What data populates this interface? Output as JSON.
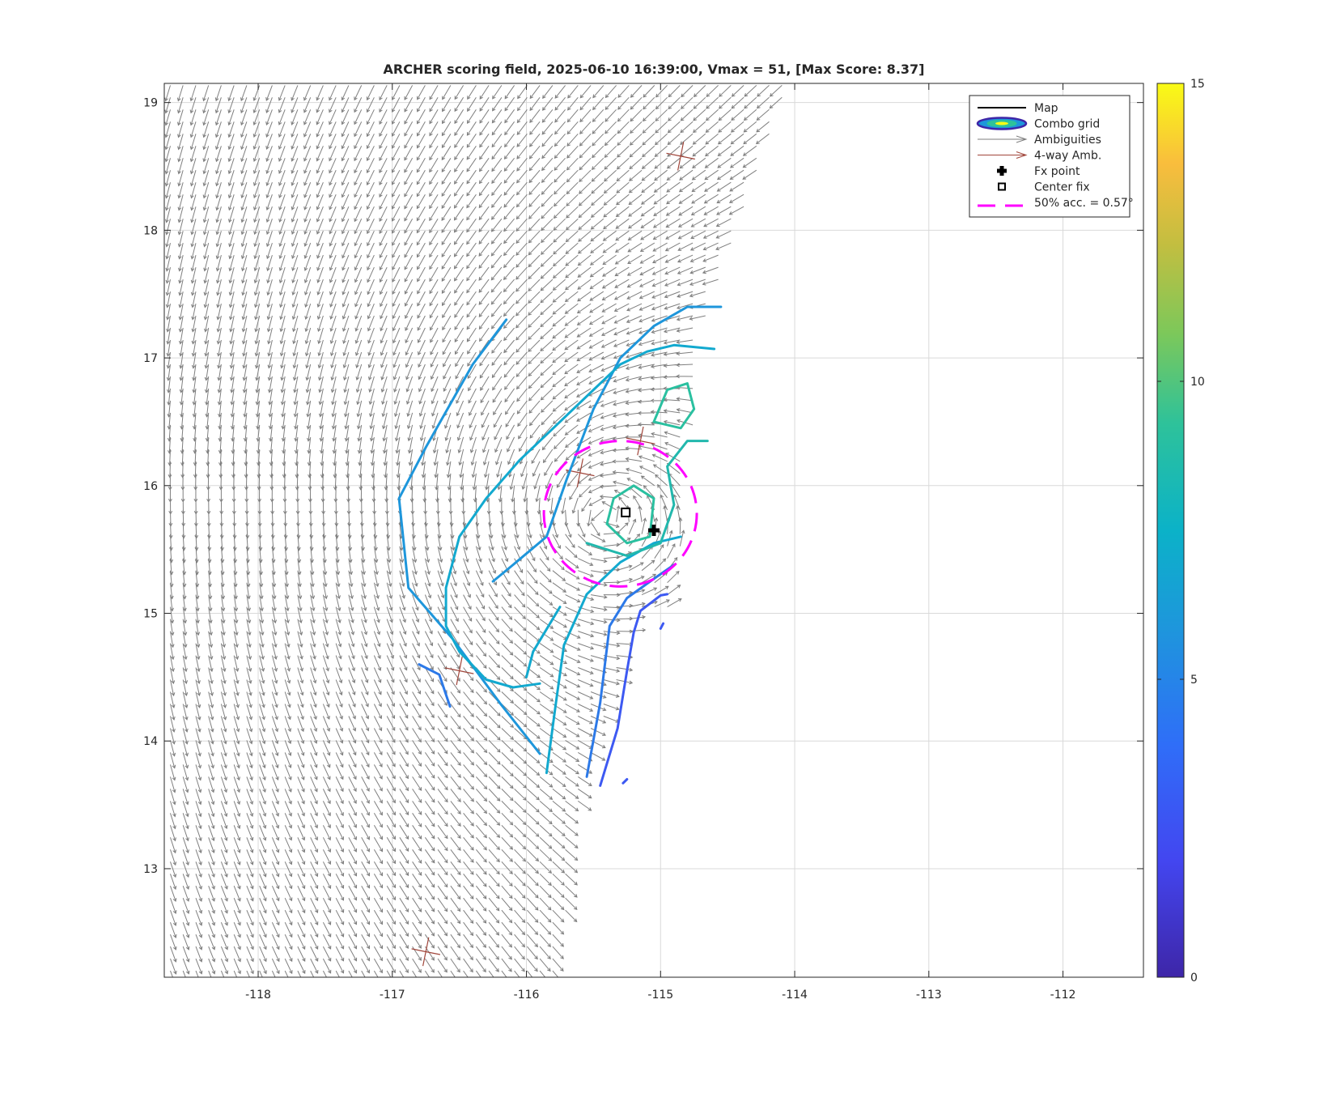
{
  "chart_data": {
    "type": "map-vector-contour",
    "title": "ARCHER scoring field, 2025-06-10 16:39:00, Vmax = 51, [Max Score: 8.37]",
    "xlabel": "",
    "ylabel": "",
    "xlim": [
      -118.7,
      -111.4
    ],
    "ylim": [
      12.15,
      19.15
    ],
    "x_ticks": [
      -118,
      -117,
      -116,
      -115,
      -114,
      -113,
      -112
    ],
    "y_ticks": [
      13,
      14,
      15,
      16,
      17,
      18,
      19
    ],
    "grid": true,
    "legend_position": "top-right",
    "legend": [
      {
        "label": "Map",
        "symbol": "line",
        "color": "#000000"
      },
      {
        "label": "Combo grid",
        "symbol": "ellipse"
      },
      {
        "label": "Ambiguities",
        "symbol": "arrow",
        "color": "#7f7f7f"
      },
      {
        "label": "4-way Amb.",
        "symbol": "arrow",
        "color": "#a0453a"
      },
      {
        "label": "Fx point",
        "symbol": "plus-filled",
        "color": "#000000"
      },
      {
        "label": "Center fix",
        "symbol": "square",
        "color": "#000000"
      },
      {
        "label": "50% acc. = 0.57°",
        "symbol": "dashed-line",
        "color": "#ff00ff"
      }
    ],
    "colorbar": {
      "min": 0,
      "max": 15,
      "ticks": [
        0,
        5,
        10,
        15
      ]
    },
    "fx_point": {
      "lon": -115.05,
      "lat": 15.65
    },
    "center_fix": {
      "lon": -115.26,
      "lat": 15.79
    },
    "circulation_center": {
      "lon": -115.4,
      "lat": 15.75
    },
    "accuracy_circle": {
      "lon": -115.3,
      "lat": 15.78,
      "radius_deg": 0.57
    },
    "contours": [
      {
        "level": 3.5,
        "color": "#3d59f2",
        "points": [
          [
            -115.45,
            13.65
          ],
          [
            -115.32,
            14.1
          ],
          [
            -115.25,
            14.55
          ],
          [
            -115.2,
            14.85
          ],
          [
            -115.15,
            15.02
          ],
          [
            -115.0,
            15.14
          ],
          [
            -114.95,
            15.15
          ]
        ]
      },
      {
        "level": 3.5,
        "color": "#3d59f2",
        "points": [
          [
            -115.28,
            13.67
          ],
          [
            -115.25,
            13.7
          ]
        ]
      },
      {
        "level": 3.5,
        "color": "#3d59f2",
        "points": [
          [
            -115.0,
            14.88
          ],
          [
            -114.98,
            14.92
          ]
        ]
      },
      {
        "level": 4.5,
        "color": "#2c79e8",
        "points": [
          [
            -115.55,
            13.72
          ],
          [
            -115.45,
            14.3
          ],
          [
            -115.38,
            14.9
          ],
          [
            -115.25,
            15.12
          ],
          [
            -115.05,
            15.27
          ],
          [
            -114.9,
            15.38
          ]
        ]
      },
      {
        "level": 4.5,
        "color": "#2c79e8",
        "points": [
          [
            -116.57,
            14.27
          ],
          [
            -116.65,
            14.52
          ],
          [
            -116.8,
            14.6
          ]
        ]
      },
      {
        "level": 5.5,
        "color": "#1e96db",
        "points": [
          [
            -115.9,
            13.9
          ],
          [
            -116.2,
            14.3
          ],
          [
            -116.55,
            14.8
          ],
          [
            -116.88,
            15.2
          ],
          [
            -116.95,
            15.9
          ],
          [
            -116.75,
            16.3
          ],
          [
            -116.4,
            16.95
          ],
          [
            -116.15,
            17.3
          ]
        ]
      },
      {
        "level": 5.5,
        "color": "#1e96db",
        "points": [
          [
            -116.25,
            15.25
          ],
          [
            -116.1,
            15.38
          ],
          [
            -115.85,
            15.6
          ],
          [
            -115.7,
            16.05
          ],
          [
            -115.5,
            16.6
          ],
          [
            -115.3,
            17.0
          ],
          [
            -115.05,
            17.25
          ],
          [
            -114.8,
            17.4
          ],
          [
            -114.55,
            17.4
          ]
        ]
      },
      {
        "level": 6.5,
        "color": "#12a9cf",
        "points": [
          [
            -115.85,
            13.75
          ],
          [
            -115.78,
            14.3
          ],
          [
            -115.72,
            14.75
          ],
          [
            -115.55,
            15.15
          ],
          [
            -115.3,
            15.4
          ],
          [
            -115.05,
            15.55
          ],
          [
            -114.85,
            15.6
          ]
        ]
      },
      {
        "level": 6.5,
        "color": "#12a9cf",
        "points": [
          [
            -115.9,
            14.45
          ],
          [
            -116.1,
            14.42
          ],
          [
            -116.3,
            14.48
          ],
          [
            -116.5,
            14.7
          ],
          [
            -116.6,
            14.9
          ],
          [
            -116.6,
            15.2
          ],
          [
            -116.5,
            15.6
          ],
          [
            -116.3,
            15.9
          ],
          [
            -116.05,
            16.2
          ],
          [
            -115.75,
            16.5
          ],
          [
            -115.5,
            16.75
          ],
          [
            -115.3,
            16.95
          ],
          [
            -115.1,
            17.05
          ],
          [
            -114.9,
            17.1
          ],
          [
            -114.6,
            17.07
          ]
        ]
      },
      {
        "level": 6.5,
        "color": "#12a9cf",
        "points": [
          [
            -115.75,
            15.05
          ],
          [
            -115.95,
            14.7
          ],
          [
            -116.0,
            14.5
          ]
        ]
      },
      {
        "level": 7.5,
        "color": "#22b8ad",
        "points": [
          [
            -115.55,
            15.55
          ],
          [
            -115.25,
            15.45
          ],
          [
            -115.0,
            15.55
          ],
          [
            -114.9,
            15.85
          ],
          [
            -114.95,
            16.15
          ],
          [
            -114.8,
            16.35
          ],
          [
            -114.65,
            16.35
          ]
        ]
      },
      {
        "level": 8.0,
        "color": "#2ac0a0",
        "points": [
          [
            -115.4,
            15.7
          ],
          [
            -115.35,
            15.9
          ],
          [
            -115.2,
            16.0
          ],
          [
            -115.05,
            15.9
          ],
          [
            -115.08,
            15.6
          ],
          [
            -115.25,
            15.55
          ],
          [
            -115.4,
            15.7
          ]
        ]
      },
      {
        "level": 8.0,
        "color": "#2ac0a0",
        "points": [
          [
            -115.05,
            16.5
          ],
          [
            -114.95,
            16.75
          ],
          [
            -114.8,
            16.8
          ],
          [
            -114.75,
            16.6
          ],
          [
            -114.85,
            16.45
          ],
          [
            -115.05,
            16.5
          ]
        ]
      }
    ],
    "four_way_ambiguities": [
      {
        "lon": -114.85,
        "lat": 18.58
      },
      {
        "lon": -115.15,
        "lat": 16.35
      },
      {
        "lon": -115.6,
        "lat": 16.1
      },
      {
        "lon": -116.5,
        "lat": 14.55
      },
      {
        "lon": -116.75,
        "lat": 12.35
      }
    ]
  }
}
